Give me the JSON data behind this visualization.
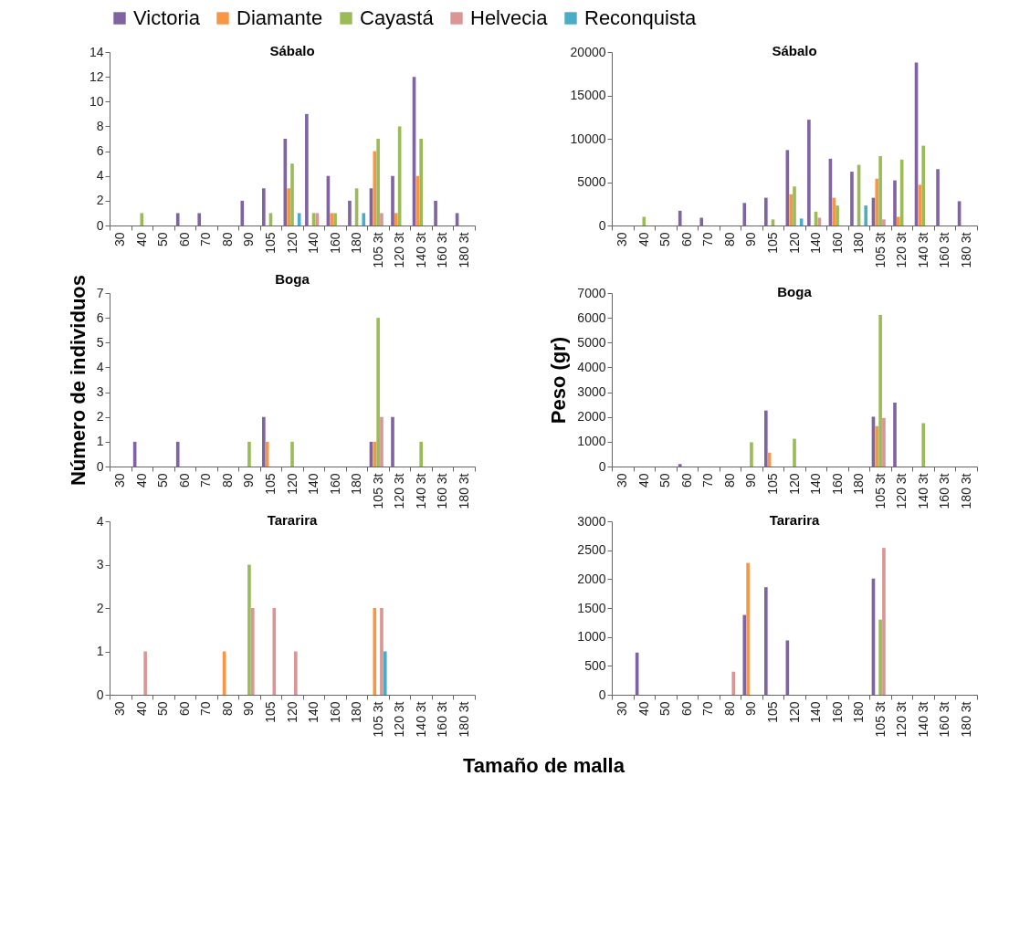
{
  "chart_data": [
    {
      "type": "bar",
      "title": "Sábalo",
      "categories": [
        "30",
        "40",
        "50",
        "60",
        "70",
        "80",
        "90",
        "105",
        "120",
        "140",
        "160",
        "180",
        "105 3t",
        "120 3t",
        "140 3t",
        "160 3t",
        "180 3t"
      ],
      "ylim": [
        0,
        14
      ],
      "yticks": [
        0,
        2,
        4,
        6,
        8,
        10,
        12,
        14
      ],
      "grid": false,
      "legend": "top",
      "series": [
        {
          "name": "Victoria",
          "color": "#8064a2",
          "values": [
            null,
            null,
            null,
            1,
            1,
            null,
            2,
            3,
            7,
            9,
            4,
            2,
            3,
            4,
            12,
            2,
            1
          ]
        },
        {
          "name": "Diamante",
          "color": "#f79646",
          "values": [
            null,
            null,
            null,
            null,
            null,
            null,
            null,
            null,
            3,
            null,
            1,
            null,
            6,
            1,
            4,
            null,
            null
          ]
        },
        {
          "name": "Cayastá",
          "color": "#9bbb59",
          "values": [
            null,
            1,
            null,
            null,
            null,
            null,
            null,
            1,
            5,
            1,
            1,
            3,
            7,
            8,
            7,
            null,
            null
          ]
        },
        {
          "name": "Helvecia",
          "color": "#d99694",
          "values": [
            null,
            null,
            null,
            null,
            null,
            null,
            null,
            null,
            null,
            1,
            null,
            null,
            1,
            null,
            null,
            null,
            null
          ]
        },
        {
          "name": "Reconquista",
          "color": "#4bacc6",
          "values": [
            null,
            null,
            null,
            null,
            null,
            null,
            null,
            null,
            1,
            null,
            null,
            1,
            null,
            null,
            null,
            null,
            null
          ]
        }
      ]
    },
    {
      "type": "bar",
      "title": "Sábalo",
      "categories": [
        "30",
        "40",
        "50",
        "60",
        "70",
        "80",
        "90",
        "105",
        "120",
        "140",
        "160",
        "180",
        "105 3t",
        "120 3t",
        "140 3t",
        "160 3t",
        "180 3t"
      ],
      "ylim": [
        0,
        20000
      ],
      "yticks": [
        0,
        5000,
        10000,
        15000,
        20000
      ],
      "grid": false,
      "series": [
        {
          "name": "Victoria",
          "color": "#8064a2",
          "values": [
            null,
            null,
            null,
            1700,
            900,
            null,
            2600,
            3200,
            8700,
            12200,
            7700,
            6200,
            3200,
            5200,
            18800,
            6500,
            2800
          ]
        },
        {
          "name": "Diamante",
          "color": "#f79646",
          "values": [
            null,
            null,
            null,
            null,
            null,
            null,
            null,
            null,
            3600,
            null,
            3200,
            null,
            5400,
            1000,
            4700,
            null,
            null
          ]
        },
        {
          "name": "Cayastá",
          "color": "#9bbb59",
          "values": [
            null,
            1000,
            null,
            null,
            null,
            null,
            null,
            700,
            4500,
            1600,
            2300,
            7000,
            8000,
            7600,
            9200,
            null,
            null
          ]
        },
        {
          "name": "Helvecia",
          "color": "#d99694",
          "values": [
            null,
            null,
            null,
            null,
            null,
            null,
            null,
            null,
            null,
            900,
            null,
            null,
            700,
            null,
            null,
            null,
            null
          ]
        },
        {
          "name": "Reconquista",
          "color": "#4bacc6",
          "values": [
            null,
            null,
            null,
            null,
            null,
            null,
            null,
            null,
            800,
            null,
            null,
            2300,
            null,
            null,
            null,
            null,
            null
          ]
        }
      ]
    },
    {
      "type": "bar",
      "title": "Boga",
      "ylabel": "Número de individuos",
      "categories": [
        "30",
        "40",
        "50",
        "60",
        "70",
        "80",
        "90",
        "105",
        "120",
        "140",
        "160",
        "180",
        "105 3t",
        "120 3t",
        "140 3t",
        "160 3t",
        "180 3t"
      ],
      "ylim": [
        0,
        7
      ],
      "yticks": [
        0,
        1,
        2,
        3,
        4,
        5,
        6,
        7
      ],
      "grid": false,
      "series": [
        {
          "name": "Victoria",
          "color": "#8064a2",
          "values": [
            null,
            1,
            null,
            1,
            null,
            null,
            null,
            2,
            null,
            null,
            null,
            null,
            1,
            2,
            null,
            null,
            null
          ]
        },
        {
          "name": "Diamante",
          "color": "#f79646",
          "values": [
            null,
            null,
            null,
            null,
            null,
            null,
            null,
            1,
            null,
            null,
            null,
            null,
            1,
            null,
            null,
            null,
            null
          ]
        },
        {
          "name": "Cayastá",
          "color": "#9bbb59",
          "values": [
            null,
            null,
            null,
            null,
            null,
            null,
            1,
            null,
            1,
            null,
            null,
            null,
            6,
            null,
            1,
            null,
            null
          ]
        },
        {
          "name": "Helvecia",
          "color": "#d99694",
          "values": [
            null,
            null,
            null,
            null,
            null,
            null,
            null,
            null,
            null,
            null,
            null,
            null,
            2,
            null,
            null,
            null,
            null
          ]
        },
        {
          "name": "Reconquista",
          "color": "#4bacc6",
          "values": [
            null,
            null,
            null,
            null,
            null,
            null,
            null,
            null,
            null,
            null,
            null,
            null,
            null,
            null,
            null,
            null,
            null
          ]
        }
      ]
    },
    {
      "type": "bar",
      "title": "Boga",
      "ylabel": "Peso (gr)",
      "categories": [
        "30",
        "40",
        "50",
        "60",
        "70",
        "80",
        "90",
        "105",
        "120",
        "140",
        "160",
        "180",
        "105 3t",
        "120 3t",
        "140 3t",
        "160 3t",
        "180 3t"
      ],
      "ylim": [
        0,
        7000
      ],
      "yticks": [
        0,
        1000,
        2000,
        3000,
        4000,
        5000,
        6000,
        7000
      ],
      "grid": false,
      "series": [
        {
          "name": "Victoria",
          "color": "#8064a2",
          "values": [
            null,
            null,
            null,
            100,
            null,
            null,
            null,
            2260,
            null,
            null,
            null,
            null,
            2010,
            2580,
            null,
            null,
            null
          ]
        },
        {
          "name": "Diamante",
          "color": "#f79646",
          "values": [
            null,
            null,
            null,
            null,
            null,
            null,
            null,
            560,
            null,
            null,
            null,
            null,
            1630,
            null,
            null,
            null,
            null
          ]
        },
        {
          "name": "Cayastá",
          "color": "#9bbb59",
          "values": [
            null,
            null,
            null,
            null,
            null,
            null,
            980,
            null,
            1120,
            null,
            null,
            null,
            6120,
            null,
            1750,
            null,
            null
          ]
        },
        {
          "name": "Helvecia",
          "color": "#d99694",
          "values": [
            null,
            null,
            null,
            null,
            null,
            null,
            null,
            null,
            null,
            null,
            null,
            null,
            1960,
            null,
            null,
            null,
            null
          ]
        },
        {
          "name": "Reconquista",
          "color": "#4bacc6",
          "values": [
            null,
            null,
            null,
            null,
            null,
            null,
            null,
            null,
            null,
            null,
            null,
            null,
            null,
            null,
            null,
            null,
            null
          ]
        }
      ]
    },
    {
      "type": "bar",
      "title": "Tararira",
      "xlabel": "Tamaño de malla",
      "categories": [
        "30",
        "40",
        "50",
        "60",
        "70",
        "80",
        "90",
        "105",
        "120",
        "140",
        "160",
        "180",
        "105 3t",
        "120 3t",
        "140 3t",
        "160 3t",
        "180 3t"
      ],
      "ylim": [
        0,
        4
      ],
      "yticks": [
        0,
        1,
        2,
        3,
        4
      ],
      "grid": false,
      "series": [
        {
          "name": "Victoria",
          "color": "#8064a2",
          "values": [
            null,
            null,
            null,
            null,
            null,
            null,
            null,
            null,
            null,
            null,
            null,
            null,
            null,
            null,
            null,
            null,
            null
          ]
        },
        {
          "name": "Diamante",
          "color": "#f79646",
          "values": [
            null,
            null,
            null,
            null,
            null,
            1,
            null,
            null,
            null,
            null,
            null,
            null,
            2,
            null,
            null,
            null,
            null
          ]
        },
        {
          "name": "Cayastá",
          "color": "#9bbb59",
          "values": [
            null,
            null,
            null,
            null,
            null,
            null,
            3,
            null,
            null,
            null,
            null,
            null,
            null,
            null,
            null,
            null,
            null
          ]
        },
        {
          "name": "Helvecia",
          "color": "#d99694",
          "values": [
            null,
            1,
            null,
            null,
            null,
            null,
            2,
            2,
            1,
            null,
            null,
            null,
            2,
            null,
            null,
            null,
            null
          ]
        },
        {
          "name": "Reconquista",
          "color": "#4bacc6",
          "values": [
            null,
            null,
            null,
            null,
            null,
            null,
            null,
            null,
            null,
            null,
            null,
            null,
            1,
            null,
            null,
            null,
            null
          ]
        }
      ]
    },
    {
      "type": "bar",
      "title": "Tararira",
      "categories": [
        "30",
        "40",
        "50",
        "60",
        "70",
        "80",
        "90",
        "105",
        "120",
        "140",
        "160",
        "180",
        "105 3t",
        "120 3t",
        "140 3t",
        "160 3t",
        "180 3t"
      ],
      "ylim": [
        0,
        3000
      ],
      "yticks": [
        0,
        500,
        1000,
        1500,
        2000,
        2500,
        3000
      ],
      "grid": false,
      "series": [
        {
          "name": "Victoria",
          "color": "#8064a2",
          "values": [
            null,
            730,
            null,
            null,
            null,
            null,
            1380,
            1860,
            940,
            null,
            null,
            null,
            2010,
            null,
            null,
            null,
            null
          ]
        },
        {
          "name": "Diamante",
          "color": "#f79646",
          "values": [
            null,
            null,
            null,
            null,
            null,
            null,
            2280,
            null,
            null,
            null,
            null,
            null,
            null,
            null,
            null,
            null,
            null
          ]
        },
        {
          "name": "Cayastá",
          "color": "#9bbb59",
          "values": [
            null,
            null,
            null,
            null,
            null,
            null,
            null,
            null,
            null,
            null,
            null,
            null,
            1300,
            null,
            null,
            null,
            null
          ]
        },
        {
          "name": "Helvecia",
          "color": "#d99694",
          "values": [
            null,
            null,
            null,
            null,
            null,
            400,
            null,
            null,
            null,
            null,
            null,
            null,
            2540,
            null,
            null,
            null,
            null
          ]
        },
        {
          "name": "Reconquista",
          "color": "#4bacc6",
          "values": [
            null,
            null,
            null,
            null,
            null,
            null,
            null,
            null,
            null,
            null,
            null,
            null,
            null,
            null,
            null,
            null,
            null
          ]
        }
      ]
    }
  ]
}
